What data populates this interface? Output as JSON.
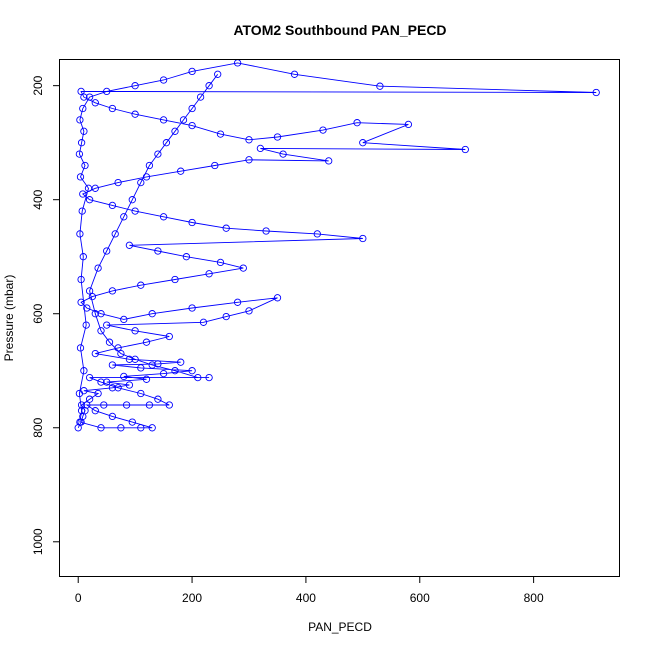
{
  "chart_data": {
    "type": "line",
    "title": "ATOM2 Southbound PAN_PECD",
    "xlabel": "PAN_PECD",
    "ylabel": "Pressure (mbar)",
    "xlim": [
      -32,
      950
    ],
    "ylim": [
      1060,
      155
    ],
    "y_reversed": true,
    "x_ticks": [
      0,
      200,
      400,
      600,
      800
    ],
    "y_ticks": [
      200,
      400,
      600,
      800,
      1000
    ],
    "grid": false,
    "series": [
      {
        "color": "#0000ff",
        "marker": "open-circle",
        "points": [
          [
            0,
            800
          ],
          [
            5,
            790
          ],
          [
            8,
            780
          ],
          [
            12,
            770
          ],
          [
            6,
            760
          ],
          [
            20,
            750
          ],
          [
            35,
            740
          ],
          [
            10,
            735
          ],
          [
            60,
            730
          ],
          [
            90,
            725
          ],
          [
            50,
            720
          ],
          [
            120,
            715
          ],
          [
            80,
            710
          ],
          [
            150,
            705
          ],
          [
            200,
            700
          ],
          [
            110,
            695
          ],
          [
            60,
            690
          ],
          [
            140,
            688
          ],
          [
            180,
            685
          ],
          [
            90,
            680
          ],
          [
            30,
            670
          ],
          [
            70,
            660
          ],
          [
            120,
            650
          ],
          [
            160,
            640
          ],
          [
            100,
            630
          ],
          [
            50,
            620
          ],
          [
            220,
            615
          ],
          [
            260,
            605
          ],
          [
            300,
            595
          ],
          [
            350,
            572
          ],
          [
            280,
            580
          ],
          [
            200,
            590
          ],
          [
            130,
            600
          ],
          [
            80,
            610
          ],
          [
            40,
            600
          ],
          [
            15,
            590
          ],
          [
            5,
            580
          ],
          [
            25,
            570
          ],
          [
            60,
            560
          ],
          [
            110,
            550
          ],
          [
            170,
            540
          ],
          [
            230,
            530
          ],
          [
            290,
            520
          ],
          [
            250,
            510
          ],
          [
            190,
            500
          ],
          [
            140,
            490
          ],
          [
            90,
            480
          ],
          [
            500,
            468
          ],
          [
            420,
            460
          ],
          [
            330,
            455
          ],
          [
            260,
            450
          ],
          [
            200,
            440
          ],
          [
            150,
            430
          ],
          [
            100,
            420
          ],
          [
            60,
            410
          ],
          [
            20,
            400
          ],
          [
            8,
            390
          ],
          [
            30,
            380
          ],
          [
            70,
            370
          ],
          [
            120,
            360
          ],
          [
            180,
            350
          ],
          [
            240,
            340
          ],
          [
            300,
            330
          ],
          [
            440,
            332
          ],
          [
            360,
            320
          ],
          [
            320,
            310
          ],
          [
            680,
            312
          ],
          [
            500,
            300
          ],
          [
            580,
            268
          ],
          [
            490,
            265
          ],
          [
            430,
            278
          ],
          [
            350,
            290
          ],
          [
            300,
            295
          ],
          [
            250,
            285
          ],
          [
            200,
            270
          ],
          [
            150,
            260
          ],
          [
            100,
            250
          ],
          [
            60,
            240
          ],
          [
            30,
            230
          ],
          [
            10,
            220
          ],
          [
            5,
            210
          ],
          [
            910,
            212
          ],
          [
            530,
            201
          ],
          [
            380,
            180
          ],
          [
            280,
            160
          ],
          [
            200,
            175
          ],
          [
            150,
            190
          ],
          [
            100,
            200
          ],
          [
            50,
            210
          ],
          [
            20,
            220
          ],
          [
            8,
            240
          ],
          [
            3,
            260
          ],
          [
            10,
            280
          ],
          [
            6,
            300
          ],
          [
            2,
            320
          ],
          [
            12,
            340
          ],
          [
            4,
            360
          ],
          [
            18,
            380
          ],
          [
            7,
            420
          ],
          [
            3,
            460
          ],
          [
            9,
            500
          ],
          [
            5,
            540
          ],
          [
            14,
            620
          ],
          [
            4,
            660
          ],
          [
            10,
            700
          ],
          [
            2,
            740
          ],
          [
            6,
            770
          ],
          [
            3,
            790
          ],
          [
            40,
            800
          ],
          [
            75,
            800
          ],
          [
            110,
            800
          ],
          [
            130,
            800
          ],
          [
            95,
            790
          ],
          [
            60,
            780
          ],
          [
            30,
            770
          ],
          [
            15,
            760
          ],
          [
            45,
            760
          ],
          [
            85,
            760
          ],
          [
            125,
            760
          ],
          [
            160,
            760
          ],
          [
            140,
            750
          ],
          [
            110,
            740
          ],
          [
            70,
            730
          ],
          [
            40,
            720
          ],
          [
            20,
            712
          ],
          [
            230,
            712
          ],
          [
            210,
            712
          ],
          [
            170,
            700
          ],
          [
            130,
            690
          ],
          [
            100,
            680
          ],
          [
            75,
            670
          ],
          [
            55,
            650
          ],
          [
            40,
            630
          ],
          [
            30,
            600
          ],
          [
            20,
            560
          ],
          [
            35,
            520
          ],
          [
            50,
            490
          ],
          [
            65,
            460
          ],
          [
            80,
            430
          ],
          [
            95,
            400
          ],
          [
            110,
            370
          ],
          [
            125,
            340
          ],
          [
            140,
            320
          ],
          [
            155,
            300
          ],
          [
            170,
            280
          ],
          [
            185,
            260
          ],
          [
            200,
            240
          ],
          [
            215,
            220
          ],
          [
            230,
            200
          ],
          [
            245,
            180
          ]
        ]
      }
    ]
  }
}
